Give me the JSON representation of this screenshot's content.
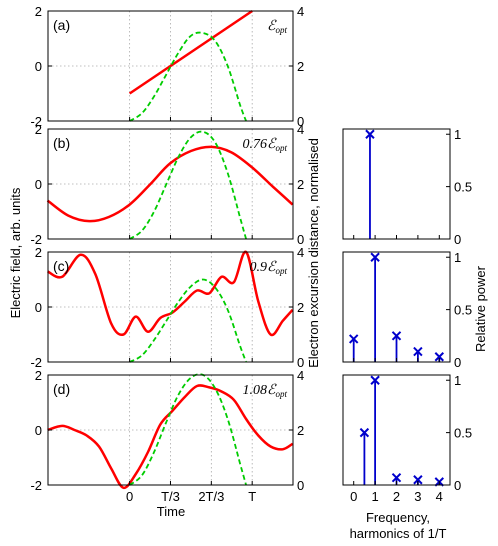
{
  "figure": {
    "ylabel_left": "Electric field, arb. units",
    "ylabel_mid": "Electron excursion distance, normalised",
    "xlabel_left": "Time",
    "ylabel_right": "Relative power",
    "xlabel_right": "Frequency,",
    "xlabel_right_2": "harmonics of 1/T"
  },
  "chart_data": [
    {
      "type": "line",
      "panel": "(a)",
      "annotation": "ℰopt",
      "xticks": [
        "0",
        "T/3",
        "2T/3",
        "T"
      ],
      "xlim": [
        -0.666,
        1.333
      ],
      "ylim_left": [
        -2,
        2
      ],
      "yticks_left": [
        -2,
        0,
        2
      ],
      "ylim_right": [
        0,
        4
      ],
      "yticks_right": [
        0,
        2,
        4
      ],
      "grid": true,
      "series": [
        {
          "axis": "left",
          "style": "solid",
          "color": "#ff0000",
          "x": [
            0,
            0.25,
            0.5,
            0.75,
            1.0
          ],
          "y": [
            -1.0,
            -0.25,
            0.5,
            1.25,
            2.0
          ]
        },
        {
          "axis": "right",
          "style": "dashed",
          "color": "#00cc00",
          "x": [
            0,
            0.1,
            0.2,
            0.3,
            0.4,
            0.5,
            0.6,
            0.7,
            0.8,
            0.9,
            0.95
          ],
          "y": [
            0.0,
            0.28,
            0.9,
            1.7,
            2.5,
            3.1,
            3.2,
            2.9,
            2.0,
            0.6,
            0.0
          ]
        }
      ]
    },
    {
      "type": "line",
      "panel": "(b)",
      "annotation": "0.76ℰopt",
      "xticks": [
        "0",
        "T/3",
        "2T/3",
        "T"
      ],
      "xlim": [
        -0.666,
        1.333
      ],
      "ylim_left": [
        -2,
        2
      ],
      "yticks_left": [
        -2,
        0,
        2
      ],
      "ylim_right": [
        0,
        4
      ],
      "yticks_right": [
        0,
        2,
        4
      ],
      "grid": true,
      "series": [
        {
          "axis": "left",
          "style": "solid",
          "color": "#ff0000",
          "x": [
            -0.67,
            -0.5,
            -0.33,
            -0.17,
            0,
            0.17,
            0.33,
            0.5,
            0.67,
            0.83,
            1.0,
            1.17,
            1.33
          ],
          "y": [
            -0.6,
            -1.15,
            -1.35,
            -1.2,
            -0.75,
            0.0,
            0.75,
            1.2,
            1.35,
            1.15,
            0.6,
            -0.1,
            -0.75
          ]
        },
        {
          "axis": "right",
          "style": "dashed",
          "color": "#00cc00",
          "x": [
            0,
            0.1,
            0.2,
            0.3,
            0.4,
            0.5,
            0.6,
            0.7,
            0.8,
            0.9,
            0.95
          ],
          "y": [
            0.0,
            0.3,
            1.0,
            2.0,
            3.0,
            3.7,
            3.9,
            3.5,
            2.4,
            0.8,
            0.0
          ]
        }
      ]
    },
    {
      "type": "line",
      "panel": "(c)",
      "annotation": "0.9ℰopt",
      "xticks": [
        "0",
        "T/3",
        "2T/3",
        "T"
      ],
      "xlim": [
        -0.666,
        1.333
      ],
      "ylim_left": [
        -2,
        2
      ],
      "yticks_left": [
        -2,
        0,
        2
      ],
      "ylim_right": [
        0,
        4
      ],
      "yticks_right": [
        0,
        2,
        4
      ],
      "grid": true,
      "series": [
        {
          "axis": "left",
          "style": "solid",
          "color": "#ff0000",
          "x": [
            -0.67,
            -0.55,
            -0.4,
            -0.28,
            -0.15,
            -0.05,
            0.05,
            0.15,
            0.25,
            0.35,
            0.45,
            0.55,
            0.65,
            0.75,
            0.85,
            0.95,
            1.05,
            1.15,
            1.25,
            1.33
          ],
          "y": [
            1.3,
            1.1,
            1.9,
            1.2,
            -0.6,
            -1.0,
            -0.35,
            -0.9,
            -0.4,
            -0.2,
            0.2,
            0.6,
            0.5,
            1.1,
            0.9,
            2.0,
            0.2,
            -1.0,
            -0.5,
            -0.1
          ]
        },
        {
          "axis": "right",
          "style": "dashed",
          "color": "#00cc00",
          "x": [
            0,
            0.1,
            0.2,
            0.3,
            0.4,
            0.5,
            0.6,
            0.7,
            0.8,
            0.9,
            0.95
          ],
          "y": [
            0.0,
            0.24,
            0.8,
            1.5,
            2.2,
            2.75,
            3.0,
            2.7,
            1.9,
            0.6,
            0.0
          ]
        }
      ]
    },
    {
      "type": "line",
      "panel": "(d)",
      "annotation": "1.08ℰopt",
      "xticks": [
        "0",
        "T/3",
        "2T/3",
        "T"
      ],
      "xlim": [
        -0.666,
        1.333
      ],
      "ylim_left": [
        -2,
        2
      ],
      "yticks_left": [
        -2,
        0,
        2
      ],
      "ylim_right": [
        0,
        4
      ],
      "yticks_right": [
        0,
        2,
        4
      ],
      "grid": true,
      "series": [
        {
          "axis": "left",
          "style": "solid",
          "color": "#ff0000",
          "x": [
            -0.67,
            -0.55,
            -0.45,
            -0.35,
            -0.25,
            -0.15,
            -0.05,
            0.05,
            0.15,
            0.25,
            0.35,
            0.45,
            0.55,
            0.65,
            0.75,
            0.85,
            0.95,
            1.05,
            1.15,
            1.25,
            1.33
          ],
          "y": [
            0.0,
            0.15,
            0.0,
            -0.2,
            -0.6,
            -1.4,
            -2.1,
            -1.6,
            -0.8,
            0.2,
            0.7,
            1.2,
            1.6,
            1.55,
            1.4,
            1.1,
            0.4,
            -0.2,
            -0.6,
            -0.7,
            -0.5
          ]
        },
        {
          "axis": "right",
          "style": "dashed",
          "color": "#00cc00",
          "x": [
            0,
            0.1,
            0.2,
            0.3,
            0.4,
            0.5,
            0.6,
            0.7,
            0.8,
            0.9,
            0.95
          ],
          "y": [
            0.0,
            0.35,
            1.2,
            2.3,
            3.3,
            3.9,
            4.0,
            3.5,
            2.4,
            0.8,
            0.0
          ]
        }
      ]
    },
    {
      "type": "bar",
      "panel": "spectrum-b",
      "xlim": [
        -0.5,
        4.5
      ],
      "ylim": [
        0,
        1.05
      ],
      "yticks": [
        0,
        0.5,
        1
      ],
      "x": [
        0.76
      ],
      "values": [
        1.0
      ]
    },
    {
      "type": "bar",
      "panel": "spectrum-c",
      "xlim": [
        -0.5,
        4.5
      ],
      "ylim": [
        0,
        1.05
      ],
      "yticks": [
        0,
        0.5,
        1
      ],
      "x": [
        0,
        1,
        2,
        3,
        4
      ],
      "values": [
        0.22,
        1.0,
        0.25,
        0.1,
        0.05
      ]
    },
    {
      "type": "bar",
      "panel": "spectrum-d",
      "xlim": [
        -0.5,
        4.5
      ],
      "ylim": [
        0,
        1.05
      ],
      "yticks": [
        0,
        0.5,
        1
      ],
      "xticks": [
        0,
        1,
        2,
        3,
        4
      ],
      "x": [
        0.5,
        1,
        2,
        3,
        4
      ],
      "values": [
        0.5,
        1.0,
        0.07,
        0.05,
        0.03
      ]
    }
  ]
}
